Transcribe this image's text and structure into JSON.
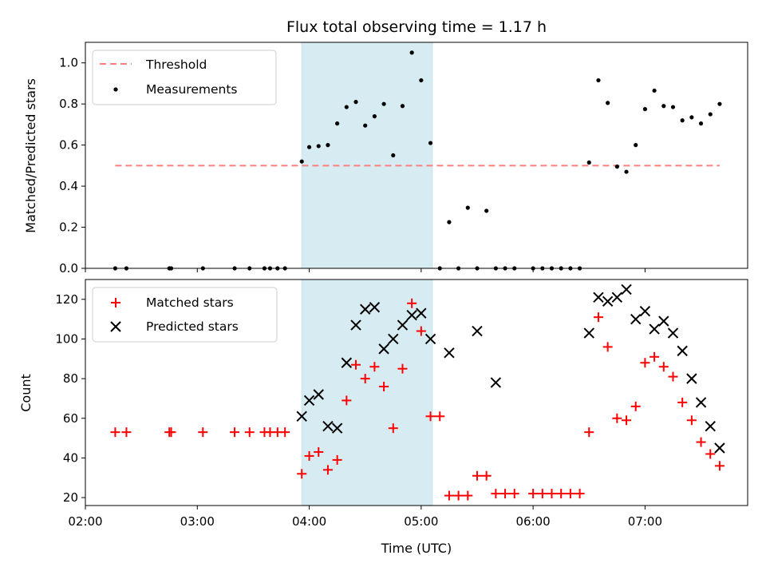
{
  "chart_data": [
    {
      "type": "scatter",
      "title": "Flux total observing time = 1.17 h",
      "xlabel": "",
      "ylabel": "Matched/Predicted stars",
      "xlim": [
        "02:00",
        "07:55"
      ],
      "ylim": [
        0,
        1.1
      ],
      "yticks": [
        "0.0",
        "0.2",
        "0.4",
        "0.6",
        "0.8",
        "1.0"
      ],
      "highlight_span": [
        "03:56",
        "05:06"
      ],
      "legend": {
        "location": "upper-left",
        "entries": [
          "Threshold",
          "Measurements"
        ]
      },
      "threshold": {
        "name": "Threshold",
        "value": 0.5,
        "x_range": [
          "02:16",
          "07:40"
        ],
        "color": "#ff7f7f"
      },
      "series": [
        {
          "name": "Measurements",
          "color": "#000000",
          "x": [
            "02:16",
            "02:22",
            "02:45",
            "02:46",
            "03:03",
            "03:20",
            "03:28",
            "03:36",
            "03:39",
            "03:43",
            "03:47",
            "03:56",
            "04:00",
            "04:05",
            "04:10",
            "04:15",
            "04:20",
            "04:25",
            "04:30",
            "04:35",
            "04:40",
            "04:45",
            "04:50",
            "04:55",
            "05:00",
            "05:05",
            "05:10",
            "05:15",
            "05:20",
            "05:25",
            "05:30",
            "05:35",
            "05:40",
            "05:45",
            "05:50",
            "06:00",
            "06:05",
            "06:10",
            "06:15",
            "06:20",
            "06:25",
            "06:30",
            "06:35",
            "06:40",
            "06:45",
            "06:50",
            "06:55",
            "07:00",
            "07:05",
            "07:10",
            "07:15",
            "07:20",
            "07:25",
            "07:30",
            "07:35",
            "07:40"
          ],
          "y": [
            0,
            0,
            0,
            0,
            0,
            0,
            0,
            0,
            0,
            0,
            0,
            0.52,
            0.59,
            0.595,
            0.6,
            0.705,
            0.785,
            0.81,
            0.695,
            0.74,
            0.8,
            0.55,
            0.79,
            1.05,
            0.915,
            0.61,
            0,
            0.225,
            0,
            0.295,
            0,
            0.28,
            0,
            0,
            0,
            0,
            0,
            0,
            0,
            0,
            0,
            0.515,
            0.915,
            0.805,
            0.495,
            0.47,
            0.6,
            0.775,
            0.865,
            0.79,
            0.785,
            0.72,
            0.735,
            0.705,
            0.75,
            0.8
          ]
        }
      ]
    },
    {
      "type": "scatter",
      "title": "",
      "xlabel": "Time (UTC)",
      "ylabel": "Count",
      "xlim": [
        "02:00",
        "07:55"
      ],
      "ylim": [
        16,
        130
      ],
      "xticks": [
        "02:00",
        "03:00",
        "04:00",
        "05:00",
        "06:00",
        "07:00"
      ],
      "yticks": [
        "20",
        "40",
        "60",
        "80",
        "100",
        "120"
      ],
      "highlight_span": [
        "03:56",
        "05:06"
      ],
      "legend": {
        "location": "upper-left",
        "entries": [
          "Matched stars",
          "Predicted stars"
        ]
      },
      "series": [
        {
          "name": "Matched stars",
          "marker": "+",
          "color": "#ff0000",
          "x": [
            "02:16",
            "02:22",
            "02:45",
            "02:46",
            "03:03",
            "03:20",
            "03:28",
            "03:36",
            "03:39",
            "03:43",
            "03:47",
            "03:56",
            "04:00",
            "04:05",
            "04:10",
            "04:15",
            "04:20",
            "04:25",
            "04:30",
            "04:35",
            "04:40",
            "04:45",
            "04:50",
            "04:55",
            "05:00",
            "05:05",
            "05:10",
            "05:15",
            "05:20",
            "05:25",
            "05:30",
            "05:35",
            "05:40",
            "05:45",
            "05:50",
            "06:00",
            "06:05",
            "06:10",
            "06:15",
            "06:20",
            "06:25",
            "06:30",
            "06:35",
            "06:40",
            "06:45",
            "06:50",
            "06:55",
            "07:00",
            "07:05",
            "07:10",
            "07:15",
            "07:20",
            "07:25",
            "07:30",
            "07:35",
            "07:40"
          ],
          "y": [
            53,
            53,
            53,
            53,
            53,
            53,
            53,
            53,
            53,
            53,
            53,
            32,
            41,
            43,
            34,
            39,
            69,
            87,
            80,
            86,
            76,
            55,
            85,
            118,
            104,
            61,
            61,
            21,
            21,
            21,
            31,
            31,
            22,
            22,
            22,
            22,
            22,
            22,
            22,
            22,
            22,
            53,
            111,
            96,
            60,
            59,
            66,
            88,
            91,
            86,
            81,
            68,
            59,
            48,
            42,
            36
          ]
        },
        {
          "name": "Predicted stars",
          "marker": "x",
          "color": "#000000",
          "x": [
            "03:56",
            "04:00",
            "04:05",
            "04:10",
            "04:15",
            "04:20",
            "04:25",
            "04:30",
            "04:35",
            "04:40",
            "04:45",
            "04:50",
            "04:55",
            "05:00",
            "05:05",
            "05:15",
            "05:30",
            "05:40",
            "06:30",
            "06:35",
            "06:40",
            "06:45",
            "06:50",
            "06:55",
            "07:00",
            "07:05",
            "07:10",
            "07:15",
            "07:20",
            "07:25",
            "07:30",
            "07:35",
            "07:40"
          ],
          "y": [
            61,
            69,
            72,
            56,
            55,
            88,
            107,
            115,
            116,
            95,
            100,
            107,
            112,
            113,
            100,
            93,
            104,
            78,
            103,
            121,
            119,
            121,
            125,
            110,
            114,
            105,
            109,
            103,
            94,
            80,
            68,
            56,
            45
          ]
        }
      ]
    }
  ]
}
